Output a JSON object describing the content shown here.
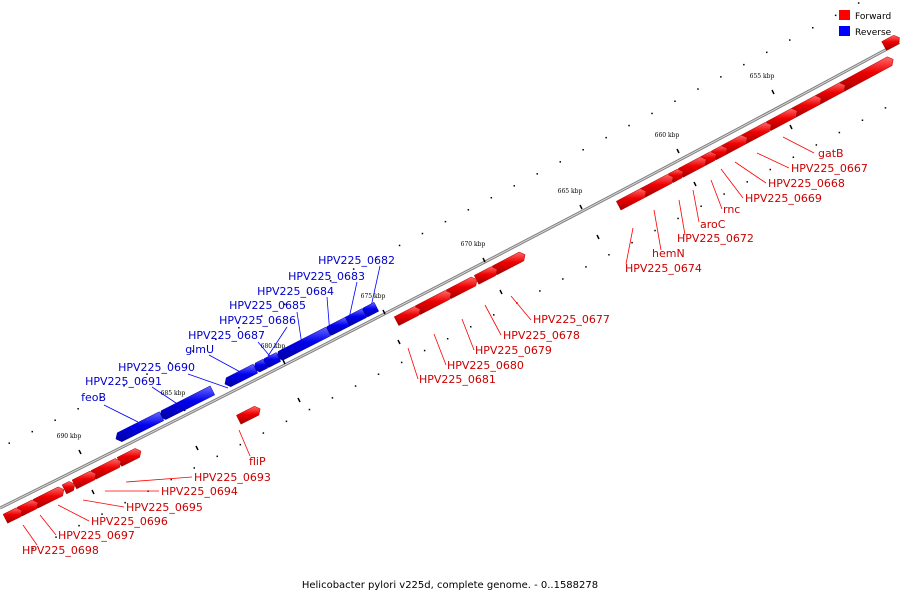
{
  "caption": "Helicobacter pylori v225d, complete genome. - 0..1588278",
  "legend": [
    {
      "label": "Forward",
      "color": "#ff0000"
    },
    {
      "label": "Reverse",
      "color": "#0000ff"
    }
  ],
  "colors": {
    "forward": "#ff0000",
    "forward_label": "#cc0000",
    "reverse": "#0000ff",
    "reverse_label": "#0000cc",
    "backbone": "#808080"
  },
  "ticks": [
    "655 kbp",
    "660 kbp",
    "665 kbp",
    "670 kbp",
    "675 kbp",
    "680 kbp",
    "685 kbp",
    "690 kbp"
  ],
  "genes": [
    {
      "name": "gatB",
      "strand": "forward"
    },
    {
      "name": "HPV225_0667",
      "strand": "forward"
    },
    {
      "name": "HPV225_0668",
      "strand": "forward"
    },
    {
      "name": "HPV225_0669",
      "strand": "forward"
    },
    {
      "name": "rnc",
      "strand": "forward"
    },
    {
      "name": "aroC",
      "strand": "forward"
    },
    {
      "name": "HPV225_0672",
      "strand": "forward"
    },
    {
      "name": "hemN",
      "strand": "forward"
    },
    {
      "name": "HPV225_0674",
      "strand": "forward"
    },
    {
      "name": "HPV225_0677",
      "strand": "forward"
    },
    {
      "name": "HPV225_0678",
      "strand": "forward"
    },
    {
      "name": "HPV225_0679",
      "strand": "forward"
    },
    {
      "name": "HPV225_0680",
      "strand": "forward"
    },
    {
      "name": "HPV225_0681",
      "strand": "forward"
    },
    {
      "name": "HPV225_0682",
      "strand": "reverse"
    },
    {
      "name": "HPV225_0683",
      "strand": "reverse"
    },
    {
      "name": "HPV225_0684",
      "strand": "reverse"
    },
    {
      "name": "HPV225_0685",
      "strand": "reverse"
    },
    {
      "name": "HPV225_0686",
      "strand": "reverse"
    },
    {
      "name": "HPV225_0687",
      "strand": "reverse"
    },
    {
      "name": "glmU",
      "strand": "reverse"
    },
    {
      "name": "HPV225_0690",
      "strand": "reverse"
    },
    {
      "name": "HPV225_0691",
      "strand": "reverse"
    },
    {
      "name": "feoB",
      "strand": "reverse"
    },
    {
      "name": "fliP",
      "strand": "forward"
    },
    {
      "name": "HPV225_0693",
      "strand": "forward"
    },
    {
      "name": "HPV225_0694",
      "strand": "forward"
    },
    {
      "name": "HPV225_0695",
      "strand": "forward"
    },
    {
      "name": "HPV225_0696",
      "strand": "forward"
    },
    {
      "name": "HPV225_0697",
      "strand": "forward"
    },
    {
      "name": "HPV225_0698",
      "strand": "forward"
    }
  ]
}
